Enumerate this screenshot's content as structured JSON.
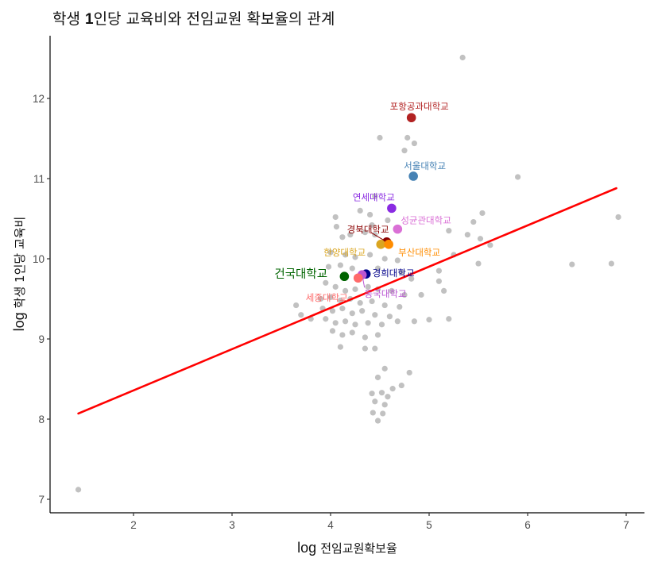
{
  "chart_data": {
    "type": "scatter",
    "title": "학생 1인당 교육비와 전임교원 확보율의 관계",
    "xlabel": "log 전임교원확보율",
    "ylabel": "log 학생 1인당 교육비",
    "xlim": [
      1.25,
      7.2
    ],
    "ylim": [
      6.85,
      12.8
    ],
    "x_ticks": [
      2,
      3,
      4,
      5,
      6,
      7
    ],
    "y_ticks": [
      7,
      8,
      9,
      10,
      11,
      12
    ],
    "grid": false,
    "legend": "none",
    "point_color": "#bebebe",
    "trend_line": {
      "color": "#ff0000",
      "type": "linear fit",
      "x_start": 1.44,
      "y_start": 8.07,
      "x_end": 6.9,
      "y_end": 10.88
    },
    "highlighted": [
      {
        "name": "포항공과대학교",
        "x": 4.82,
        "y": 11.76,
        "color": "#b22222"
      },
      {
        "name": "서울대학교",
        "x": 4.84,
        "y": 11.03,
        "color": "#4682b4"
      },
      {
        "name": "연세대학교",
        "x": 4.62,
        "y": 10.63,
        "color": "#8a2be2"
      },
      {
        "name": "성균관대학교",
        "x": 4.68,
        "y": 10.37,
        "color": "#da70d6"
      },
      {
        "name": "경북대학교",
        "x": 4.57,
        "y": 10.21,
        "color": "#8b0000"
      },
      {
        "name": "한양대학교",
        "x": 4.51,
        "y": 10.18,
        "color": "#daa520"
      },
      {
        "name": "부산대학교",
        "x": 4.59,
        "y": 10.18,
        "color": "#ff8c00"
      },
      {
        "name": "건국대학교",
        "x": 4.14,
        "y": 9.78,
        "color": "#006400"
      },
      {
        "name": "경희대학교",
        "x": 4.36,
        "y": 9.81,
        "color": "#00008b"
      },
      {
        "name": "동국대학교",
        "x": 4.32,
        "y": 9.8,
        "color": "#ba55d3"
      },
      {
        "name": "세종대학교",
        "x": 4.28,
        "y": 9.76,
        "color": "#ff6a6a"
      }
    ],
    "points": [
      [
        1.44,
        7.12
      ],
      [
        5.34,
        12.51
      ],
      [
        4.5,
        11.51
      ],
      [
        4.78,
        11.51
      ],
      [
        4.85,
        11.44
      ],
      [
        4.75,
        11.35
      ],
      [
        5.9,
        11.02
      ],
      [
        6.92,
        10.52
      ],
      [
        6.85,
        9.94
      ],
      [
        6.45,
        9.93
      ],
      [
        5.54,
        10.57
      ],
      [
        5.45,
        10.46
      ],
      [
        5.39,
        10.3
      ],
      [
        5.52,
        10.25
      ],
      [
        5.62,
        10.17
      ],
      [
        5.5,
        9.94
      ],
      [
        5.2,
        10.35
      ],
      [
        5.25,
        10.05
      ],
      [
        5.1,
        9.85
      ],
      [
        5.1,
        9.72
      ],
      [
        5.15,
        9.6
      ],
      [
        5.2,
        9.25
      ],
      [
        5.0,
        9.24
      ],
      [
        4.05,
        10.52
      ],
      [
        4.4,
        10.55
      ],
      [
        4.42,
        10.42
      ],
      [
        4.58,
        10.48
      ],
      [
        4.45,
        10.78
      ],
      [
        4.3,
        10.6
      ],
      [
        4.06,
        10.4
      ],
      [
        4.12,
        10.27
      ],
      [
        4.2,
        10.3
      ],
      [
        4.35,
        10.33
      ],
      [
        4.45,
        10.3
      ],
      [
        4.0,
        10.08
      ],
      [
        4.15,
        10.05
      ],
      [
        4.25,
        10.02
      ],
      [
        4.4,
        10.05
      ],
      [
        4.55,
        10.0
      ],
      [
        4.68,
        9.98
      ],
      [
        3.98,
        9.9
      ],
      [
        4.1,
        9.92
      ],
      [
        4.22,
        9.88
      ],
      [
        4.48,
        9.88
      ],
      [
        4.72,
        9.83
      ],
      [
        4.82,
        9.75
      ],
      [
        3.95,
        9.7
      ],
      [
        4.05,
        9.65
      ],
      [
        4.15,
        9.6
      ],
      [
        4.25,
        9.62
      ],
      [
        4.38,
        9.65
      ],
      [
        4.48,
        9.62
      ],
      [
        4.62,
        9.6
      ],
      [
        4.75,
        9.55
      ],
      [
        4.92,
        9.55
      ],
      [
        3.9,
        9.5
      ],
      [
        4.0,
        9.52
      ],
      [
        4.1,
        9.48
      ],
      [
        4.2,
        9.5
      ],
      [
        4.3,
        9.45
      ],
      [
        4.42,
        9.47
      ],
      [
        4.55,
        9.42
      ],
      [
        4.7,
        9.4
      ],
      [
        3.92,
        9.38
      ],
      [
        4.02,
        9.35
      ],
      [
        4.12,
        9.38
      ],
      [
        4.22,
        9.32
      ],
      [
        4.32,
        9.35
      ],
      [
        4.45,
        9.3
      ],
      [
        4.6,
        9.28
      ],
      [
        3.95,
        9.25
      ],
      [
        4.05,
        9.2
      ],
      [
        4.15,
        9.22
      ],
      [
        4.25,
        9.18
      ],
      [
        4.38,
        9.2
      ],
      [
        4.52,
        9.18
      ],
      [
        4.68,
        9.22
      ],
      [
        4.85,
        9.22
      ],
      [
        4.02,
        9.1
      ],
      [
        4.12,
        9.05
      ],
      [
        4.22,
        9.08
      ],
      [
        4.35,
        9.02
      ],
      [
        4.48,
        9.05
      ],
      [
        3.65,
        9.42
      ],
      [
        3.7,
        9.3
      ],
      [
        3.8,
        9.25
      ],
      [
        4.1,
        8.9
      ],
      [
        4.35,
        8.88
      ],
      [
        4.45,
        8.88
      ],
      [
        4.55,
        8.63
      ],
      [
        4.48,
        8.52
      ],
      [
        4.8,
        8.58
      ],
      [
        4.72,
        8.42
      ],
      [
        4.63,
        8.38
      ],
      [
        4.42,
        8.32
      ],
      [
        4.52,
        8.33
      ],
      [
        4.58,
        8.28
      ],
      [
        4.45,
        8.22
      ],
      [
        4.55,
        8.18
      ],
      [
        4.43,
        8.08
      ],
      [
        4.53,
        8.07
      ],
      [
        4.48,
        7.98
      ]
    ]
  }
}
